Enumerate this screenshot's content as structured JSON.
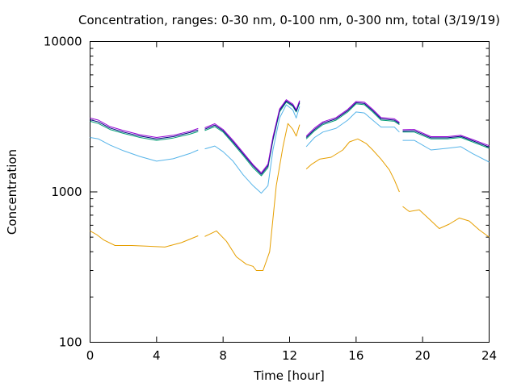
{
  "chart_data": {
    "type": "line",
    "title": "Concentration, ranges: 0-30 nm, 0-100 nm, 0-300 nm, total (3/19/19)",
    "xlabel": "Time [hour]",
    "ylabel": "Concentration",
    "xlim": [
      0,
      24
    ],
    "ylim": [
      100,
      10000
    ],
    "yscale": "log",
    "xticks": [
      0,
      4,
      8,
      12,
      16,
      20,
      24
    ],
    "yticks": [
      100,
      1000,
      10000
    ],
    "xtick_labels": [
      "0",
      "4",
      "8",
      "12",
      "16",
      "20",
      "24"
    ],
    "ytick_labels": [
      "100",
      "1000",
      "10000"
    ],
    "grid": false,
    "legend": "none",
    "series": [
      {
        "color": "#e69f00",
        "segments": [
          [
            [
              0,
              550
            ],
            [
              0.4,
              520
            ],
            [
              0.8,
              480
            ],
            [
              1.5,
              440
            ],
            [
              2.5,
              440
            ],
            [
              3.5,
              435
            ],
            [
              4.5,
              430
            ],
            [
              5.5,
              460
            ],
            [
              6.5,
              510
            ]
          ],
          [
            [
              6.9,
              505
            ],
            [
              7.6,
              550
            ],
            [
              8.2,
              470
            ],
            [
              8.8,
              370
            ],
            [
              9.4,
              330
            ],
            [
              9.8,
              320
            ],
            [
              10.0,
              300
            ],
            [
              10.4,
              300
            ],
            [
              10.8,
              400
            ],
            [
              11.2,
              1100
            ],
            [
              11.6,
              2000
            ],
            [
              11.9,
              2850
            ],
            [
              12.2,
              2600
            ],
            [
              12.4,
              2350
            ],
            [
              12.6,
              2800
            ]
          ],
          [
            [
              13.0,
              1420
            ],
            [
              13.3,
              1520
            ],
            [
              13.8,
              1650
            ],
            [
              14.5,
              1700
            ],
            [
              15.2,
              1900
            ],
            [
              15.6,
              2150
            ],
            [
              16.1,
              2250
            ],
            [
              16.6,
              2100
            ],
            [
              17.0,
              1900
            ],
            [
              17.5,
              1650
            ],
            [
              18.0,
              1400
            ],
            [
              18.3,
              1200
            ],
            [
              18.6,
              1000
            ]
          ],
          [
            [
              18.8,
              800
            ],
            [
              19.2,
              740
            ],
            [
              19.8,
              760
            ],
            [
              20.4,
              660
            ],
            [
              21.0,
              570
            ],
            [
              21.6,
              610
            ],
            [
              22.2,
              670
            ],
            [
              22.8,
              640
            ],
            [
              23.4,
              560
            ],
            [
              24,
              500
            ]
          ]
        ]
      },
      {
        "color": "#56b4e9",
        "segments": [
          [
            [
              0,
              2300
            ],
            [
              0.5,
              2250
            ],
            [
              1.2,
              2050
            ],
            [
              2.0,
              1880
            ],
            [
              3.0,
              1720
            ],
            [
              4.0,
              1600
            ],
            [
              5.0,
              1660
            ],
            [
              6.0,
              1800
            ],
            [
              6.5,
              1900
            ]
          ],
          [
            [
              6.9,
              1930
            ],
            [
              7.5,
              2020
            ],
            [
              8.0,
              1850
            ],
            [
              8.6,
              1600
            ],
            [
              9.2,
              1300
            ],
            [
              9.8,
              1100
            ],
            [
              10.3,
              980
            ],
            [
              10.7,
              1100
            ],
            [
              11.0,
              1900
            ],
            [
              11.4,
              3100
            ],
            [
              11.8,
              3800
            ],
            [
              12.2,
              3500
            ],
            [
              12.4,
              3100
            ],
            [
              12.6,
              3700
            ]
          ],
          [
            [
              13.0,
              2000
            ],
            [
              13.5,
              2300
            ],
            [
              14.0,
              2500
            ],
            [
              14.8,
              2650
            ],
            [
              15.5,
              3000
            ],
            [
              16.0,
              3400
            ],
            [
              16.5,
              3350
            ],
            [
              17.0,
              3000
            ],
            [
              17.5,
              2700
            ],
            [
              18.3,
              2700
            ],
            [
              18.6,
              2500
            ]
          ],
          [
            [
              18.8,
              2200
            ],
            [
              19.5,
              2200
            ],
            [
              20.5,
              1900
            ],
            [
              21.5,
              1950
            ],
            [
              22.3,
              2000
            ],
            [
              23.0,
              1800
            ],
            [
              24,
              1580
            ]
          ]
        ]
      },
      {
        "color": "#009e73",
        "segments": [
          [
            [
              0,
              2950
            ],
            [
              0.5,
              2850
            ],
            [
              1.2,
              2600
            ],
            [
              2.0,
              2450
            ],
            [
              3.0,
              2300
            ],
            [
              4.0,
              2200
            ],
            [
              5.0,
              2280
            ],
            [
              6.0,
              2420
            ],
            [
              6.5,
              2520
            ]
          ],
          [
            [
              6.9,
              2560
            ],
            [
              7.5,
              2720
            ],
            [
              8.0,
              2500
            ],
            [
              8.6,
              2100
            ],
            [
              9.2,
              1750
            ],
            [
              9.8,
              1450
            ],
            [
              10.3,
              1280
            ],
            [
              10.7,
              1450
            ],
            [
              11.0,
              2200
            ],
            [
              11.4,
              3400
            ],
            [
              11.8,
              3950
            ],
            [
              12.2,
              3700
            ],
            [
              12.4,
              3400
            ],
            [
              12.6,
              3900
            ]
          ],
          [
            [
              13.0,
              2250
            ],
            [
              13.5,
              2550
            ],
            [
              14.0,
              2800
            ],
            [
              14.8,
              3000
            ],
            [
              15.5,
              3400
            ],
            [
              16.0,
              3850
            ],
            [
              16.5,
              3800
            ],
            [
              17.0,
              3400
            ],
            [
              17.5,
              3000
            ],
            [
              18.3,
              2950
            ],
            [
              18.6,
              2800
            ]
          ],
          [
            [
              18.8,
              2500
            ],
            [
              19.5,
              2500
            ],
            [
              20.5,
              2250
            ],
            [
              21.5,
              2250
            ],
            [
              22.3,
              2300
            ],
            [
              23.0,
              2150
            ],
            [
              24,
              1950
            ]
          ]
        ]
      },
      {
        "color": "#000080",
        "segments": [
          [
            [
              0,
              3020
            ],
            [
              0.5,
              2920
            ],
            [
              1.2,
              2660
            ],
            [
              2.0,
              2500
            ],
            [
              3.0,
              2350
            ],
            [
              4.0,
              2250
            ],
            [
              5.0,
              2330
            ],
            [
              6.0,
              2480
            ],
            [
              6.5,
              2580
            ]
          ],
          [
            [
              6.9,
              2610
            ],
            [
              7.5,
              2780
            ],
            [
              8.0,
              2550
            ],
            [
              8.6,
              2150
            ],
            [
              9.2,
              1790
            ],
            [
              9.8,
              1490
            ],
            [
              10.3,
              1310
            ],
            [
              10.7,
              1490
            ],
            [
              11.0,
              2260
            ],
            [
              11.4,
              3480
            ],
            [
              11.8,
              4020
            ],
            [
              12.2,
              3760
            ],
            [
              12.4,
              3460
            ],
            [
              12.6,
              3980
            ]
          ],
          [
            [
              13.0,
              2300
            ],
            [
              13.5,
              2600
            ],
            [
              14.0,
              2860
            ],
            [
              14.8,
              3060
            ],
            [
              15.5,
              3470
            ],
            [
              16.0,
              3920
            ],
            [
              16.5,
              3870
            ],
            [
              17.0,
              3470
            ],
            [
              17.5,
              3060
            ],
            [
              18.3,
              3000
            ],
            [
              18.6,
              2850
            ]
          ],
          [
            [
              18.8,
              2540
            ],
            [
              19.5,
              2550
            ],
            [
              20.5,
              2290
            ],
            [
              21.5,
              2290
            ],
            [
              22.3,
              2340
            ],
            [
              23.0,
              2190
            ],
            [
              24,
              1990
            ]
          ]
        ]
      },
      {
        "color": "#9400d3",
        "segments": [
          [
            [
              0,
              3100
            ],
            [
              0.5,
              3000
            ],
            [
              1.2,
              2720
            ],
            [
              2.0,
              2560
            ],
            [
              3.0,
              2400
            ],
            [
              4.0,
              2300
            ],
            [
              5.0,
              2380
            ],
            [
              6.0,
              2530
            ],
            [
              6.5,
              2640
            ]
          ],
          [
            [
              6.9,
              2670
            ],
            [
              7.5,
              2840
            ],
            [
              8.0,
              2600
            ],
            [
              8.6,
              2200
            ],
            [
              9.2,
              1830
            ],
            [
              9.8,
              1520
            ],
            [
              10.3,
              1340
            ],
            [
              10.7,
              1530
            ],
            [
              11.0,
              2320
            ],
            [
              11.4,
              3560
            ],
            [
              11.8,
              4100
            ],
            [
              12.2,
              3830
            ],
            [
              12.4,
              3520
            ],
            [
              12.6,
              4050
            ]
          ],
          [
            [
              13.0,
              2350
            ],
            [
              13.5,
              2660
            ],
            [
              14.0,
              2920
            ],
            [
              14.8,
              3120
            ],
            [
              15.5,
              3540
            ],
            [
              16.0,
              4000
            ],
            [
              16.5,
              3950
            ],
            [
              17.0,
              3540
            ],
            [
              17.5,
              3120
            ],
            [
              18.3,
              3060
            ],
            [
              18.6,
              2900
            ]
          ],
          [
            [
              18.8,
              2590
            ],
            [
              19.5,
              2600
            ],
            [
              20.5,
              2330
            ],
            [
              21.5,
              2330
            ],
            [
              22.3,
              2380
            ],
            [
              23.0,
              2230
            ],
            [
              24,
              2030
            ]
          ]
        ]
      }
    ]
  }
}
